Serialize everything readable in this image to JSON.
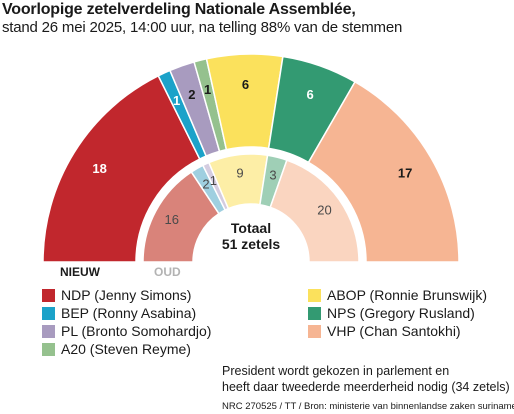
{
  "title": "Voorlopige zetelverdeling Nationale Assemblée,",
  "subtitle": "stand 26 mei 2025, 14:00 uur, na telling 88% van de stemmen",
  "chart_data": {
    "type": "pie",
    "subtype": "semicircle-parliament",
    "series": [
      {
        "name": "NIEUW",
        "values": [
          18,
          1,
          2,
          1,
          6,
          6,
          17
        ]
      },
      {
        "name": "OUD",
        "values": [
          16,
          2,
          1,
          0,
          9,
          3,
          20
        ]
      }
    ],
    "categories": [
      "NDP",
      "BEP",
      "PL",
      "A20",
      "ABOP",
      "NPS",
      "VHP"
    ],
    "total_label_line1": "Totaal",
    "total_label_line2": "51 zetels"
  },
  "parties": [
    {
      "key": "NDP",
      "legend": "NDP (Jenny Simons)",
      "color": "#c1272d",
      "light": "#d9837a"
    },
    {
      "key": "BEP",
      "legend": "BEP (Ronny Asabina)",
      "color": "#1ba2c9",
      "light": "#9fcfe0"
    },
    {
      "key": "PL",
      "legend": "PL (Bronto Somohardjo)",
      "color": "#a89bbf",
      "light": "#d4cce0"
    },
    {
      "key": "A20",
      "legend": "A20 (Steven Reyme)",
      "color": "#95c18e",
      "light": "#c9e0c4"
    },
    {
      "key": "ABOP",
      "legend": "ABOP (Ronnie Brunswijk)",
      "color": "#fbe15c",
      "light": "#fdeea6"
    },
    {
      "key": "NPS",
      "legend": "NPS (Gregory Rusland)",
      "color": "#339a72",
      "light": "#9fcfb6"
    },
    {
      "key": "VHP",
      "legend": "VHP (Chan Santokhi)",
      "color": "#f6b593",
      "light": "#fad5c0"
    }
  ],
  "note_line1": "President wordt gekozen in parlement en",
  "note_line2": "heeft daar tweederde  meerderheid nodig (34 zetels)",
  "source": "NRC 270525 / TT / Bron: ministerie van binnenlandse zaken suriname"
}
